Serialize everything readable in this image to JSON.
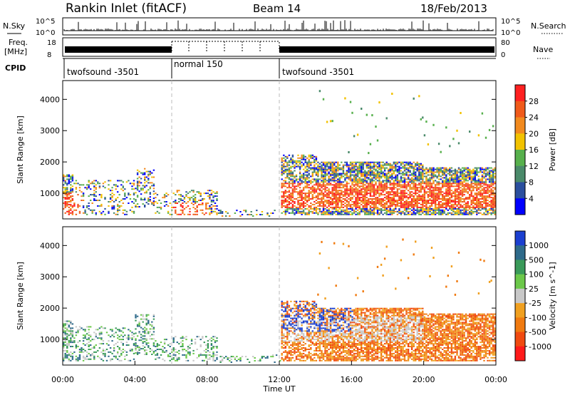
{
  "header": {
    "station": "Rankin Inlet (fitACF)",
    "beam": "Beam 14",
    "date": "18/Feb/2013"
  },
  "strips": {
    "nsky_label": "N.Sky",
    "nsky_ticks": [
      "10^5",
      "10^0"
    ],
    "nsearch_label": "N.Search",
    "nsearch_ticks": [
      "10^5",
      "10^0"
    ],
    "freq_label_line1": "Freq.",
    "freq_label_line2": "[MHz]",
    "freq_ticks": [
      "18",
      "8"
    ],
    "nave_label": "Nave",
    "nave_ticks": [
      "80",
      "0"
    ],
    "cpid_label": "CPID",
    "cpid_segments": [
      {
        "label": "twofsound -3501",
        "start_hour": 0,
        "end_hour": 6
      },
      {
        "label": "normal 150",
        "start_hour": 6,
        "end_hour": 12
      },
      {
        "label": "twofsound -3501",
        "start_hour": 12,
        "end_hour": 24
      }
    ]
  },
  "chart_data": [
    {
      "type": "heatmap",
      "title": "",
      "parameter": "power",
      "xlabel": "",
      "ylabel": "Slant Range [km]",
      "yticks": [
        "1000",
        "2000",
        "3000",
        "4000"
      ],
      "xlim": [
        0,
        24
      ],
      "ylim": [
        180,
        4600
      ],
      "colorbar": {
        "label": "Power [dB]",
        "ticks": [
          "4",
          "8",
          "12",
          "16",
          "20",
          "24",
          "28"
        ],
        "colors": [
          "#0000ff",
          "#2b4f9e",
          "#4a8a6a",
          "#57b04c",
          "#f2c200",
          "#f28a1e",
          "#f05a1a",
          "#ff2020"
        ]
      }
    },
    {
      "type": "heatmap",
      "title": "",
      "parameter": "velocity",
      "xlabel": "Time UT",
      "ylabel": "Slant Range [km]",
      "xticks": [
        "00:00",
        "04:00",
        "08:00",
        "12:00",
        "16:00",
        "20:00",
        "00:00"
      ],
      "yticks": [
        "1000",
        "2000",
        "3000",
        "4000"
      ],
      "xlim": [
        0,
        24
      ],
      "ylim": [
        180,
        4600
      ],
      "colorbar": {
        "label": "Velocity [m s^-1]",
        "ticks": [
          "1000",
          "500",
          "100",
          "25",
          "-25",
          "-100",
          "-500",
          "-1000"
        ],
        "colors": [
          "#1b3fd0",
          "#2e6a8a",
          "#3a9a5a",
          "#6cc84a",
          "#c8c8c8",
          "#f0a020",
          "#f07a10",
          "#f04a10",
          "#ff1a1a"
        ]
      }
    }
  ]
}
